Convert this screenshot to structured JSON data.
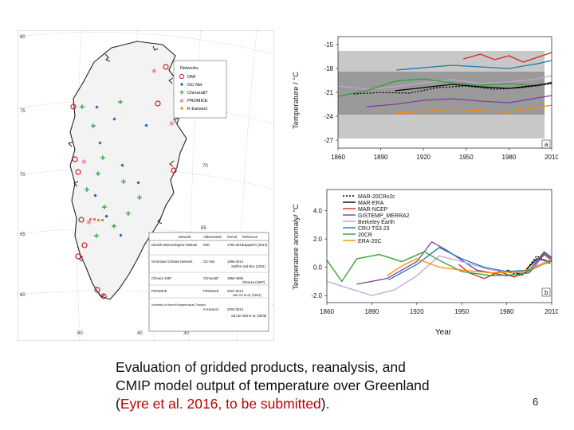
{
  "map": {
    "lat_labels": [
      "80",
      "75",
      "70",
      "65",
      "60"
    ],
    "lon_labels": [
      "60",
      "40",
      "30"
    ],
    "inner_lat_labels": [
      "70",
      "65"
    ],
    "legend": {
      "title": "Networks",
      "items": [
        {
          "label": "DMI",
          "color": "#d11b1b",
          "symbol": "circle"
        },
        {
          "label": "GC-Net",
          "color": "#1f5fbf",
          "symbol": "diamond"
        },
        {
          "label": "Chmura87",
          "color": "#2e9a3a",
          "symbol": "plus"
        },
        {
          "label": "PROMICE",
          "color": "#e089b5",
          "symbol": "star"
        },
        {
          "label": "K-transect",
          "color": "#f07f1f",
          "symbol": "square"
        }
      ]
    },
    "table": {
      "headers": [
        "Network",
        "Abbreviation",
        "Period",
        "Reference"
      ],
      "rows": [
        [
          "Danish Meteorological Institute",
          "DMI",
          "1784-2013",
          "Cappelen (2014)"
        ],
        [
          "Greenland Climate Network",
          "GC-Net",
          "1995-2013",
          "Steffen and Box (2001)"
        ],
        [
          "Chmura 1987",
          "Chmura87",
          "1950-1965",
          "Ohmura (1987)"
        ],
        [
          "PROMICE",
          "PROMICE",
          "2007-2013",
          "van As et al. (2011)"
        ],
        [
          "University of Utrecht Kangerlussuaq Transect",
          "K-transect",
          "2003-2013",
          "van de Wal et al. (2005)"
        ]
      ]
    }
  },
  "chart_a": {
    "ylabel": "Temperature / °C",
    "yticks": [
      "-15",
      "-18",
      "-21",
      "-24",
      "-27"
    ],
    "xticks": [
      "1860",
      "1890",
      "1920",
      "1950",
      "1980",
      "2010"
    ],
    "panel_label": "a"
  },
  "chart_b": {
    "ylabel": "Temperature anomaly/ °C",
    "yticks": [
      "4.0",
      "2.0",
      "0.0",
      "-2.0"
    ],
    "xticks": [
      "1860",
      "1890",
      "1920",
      "1950",
      "1980",
      "2010"
    ],
    "panel_label": "b",
    "xlabel": "Year"
  },
  "legend_b": [
    {
      "label": "MAR-20CRv2c",
      "color": "#000000",
      "dash": "2,2"
    },
    {
      "label": "MAR-ERA",
      "color": "#000000",
      "dash": ""
    },
    {
      "label": "MAR-NCEP",
      "color": "#d62728",
      "dash": ""
    },
    {
      "label": "GISTEMP_MERRA2",
      "color": "#7b3fa0",
      "dash": ""
    },
    {
      "label": "Berkeley Earth",
      "color": "#c3a3d6",
      "dash": ""
    },
    {
      "label": "CRU TS3.23",
      "color": "#1f77b4",
      "dash": ""
    },
    {
      "label": "20CR",
      "color": "#2ca02c",
      "dash": ""
    },
    {
      "label": "ERA-20C",
      "color": "#ff8c00",
      "dash": ""
    }
  ],
  "chart_data": [
    {
      "type": "line",
      "title": "a",
      "ylabel": "Temperature / °C",
      "xlabel": "",
      "xlim": [
        1860,
        2010
      ],
      "ylim": [
        -28,
        -14
      ],
      "series": [
        {
          "name": "MAR-NCEP",
          "color": "#d62728",
          "x": [
            1948,
            1960,
            1970,
            1980,
            1990,
            2000,
            2010
          ],
          "values": [
            -16.8,
            -16.2,
            -16.9,
            -16.4,
            -17.2,
            -16.6,
            -16.0
          ]
        },
        {
          "name": "CRU TS3.23",
          "color": "#1f77b4",
          "x": [
            1901,
            1920,
            1940,
            1960,
            1980,
            2000,
            2010
          ],
          "values": [
            -18.2,
            -17.9,
            -17.6,
            -17.8,
            -18.0,
            -17.4,
            -17.0
          ]
        },
        {
          "name": "Berkeley Earth",
          "color": "#c3a3d6",
          "x": [
            1860,
            1880,
            1900,
            1920,
            1940,
            1960,
            1980,
            2000,
            2010
          ],
          "values": [
            -20.2,
            -20.6,
            -20.3,
            -19.8,
            -19.4,
            -19.9,
            -19.7,
            -19.3,
            -18.9
          ]
        },
        {
          "name": "20CR",
          "color": "#2ca02c",
          "x": [
            1860,
            1880,
            1900,
            1920,
            1940,
            1960,
            1980,
            2000,
            2010
          ],
          "values": [
            -21.5,
            -20.8,
            -19.6,
            -19.3,
            -19.8,
            -20.1,
            -19.9,
            -20.2,
            -19.7
          ]
        },
        {
          "name": "MAR-20CRv2c",
          "color": "#000000",
          "x": [
            1871,
            1890,
            1910,
            1930,
            1950,
            1970,
            1990,
            2010
          ],
          "values": [
            -21.2,
            -21.0,
            -21.1,
            -20.4,
            -20.2,
            -20.6,
            -20.4,
            -19.9
          ]
        },
        {
          "name": "MAR-ERA",
          "color": "#000000",
          "x": [
            1900,
            1920,
            1940,
            1960,
            1980,
            2000,
            2010
          ],
          "values": [
            -20.8,
            -20.4,
            -20.0,
            -20.3,
            -20.5,
            -20.1,
            -19.8
          ]
        },
        {
          "name": "GISTEMP_MERRA2",
          "color": "#7b3fa0",
          "x": [
            1880,
            1900,
            1920,
            1940,
            1960,
            1980,
            2000,
            2010
          ],
          "values": [
            -22.8,
            -22.5,
            -22.0,
            -21.8,
            -22.1,
            -22.3,
            -21.7,
            -21.4
          ]
        },
        {
          "name": "ERA-20C",
          "color": "#ff8c00",
          "x": [
            1900,
            1920,
            1940,
            1960,
            1980,
            2000,
            2010
          ],
          "values": [
            -23.6,
            -23.4,
            -23.1,
            -23.3,
            -23.5,
            -22.9,
            -22.6
          ]
        }
      ]
    },
    {
      "type": "line",
      "title": "b",
      "xlabel": "Year",
      "ylabel": "Temperature anomaly/ °C",
      "xlim": [
        1860,
        2010
      ],
      "ylim": [
        -2.5,
        5.5
      ],
      "series": [
        {
          "name": "MAR-20CRv2c",
          "color": "#000000",
          "x": [
            1980,
            1990,
            2000,
            2010
          ],
          "values": [
            -0.3,
            -0.6,
            0.8,
            0.2
          ]
        },
        {
          "name": "MAR-ERA",
          "color": "#000000",
          "x": [
            1980,
            1990,
            2000,
            2010
          ],
          "values": [
            -0.2,
            -0.5,
            0.6,
            0.4
          ]
        },
        {
          "name": "MAR-NCEP",
          "color": "#d62728",
          "x": [
            1948,
            1955,
            1965,
            1975,
            1985,
            1995,
            2005,
            2010
          ],
          "values": [
            0.2,
            -0.4,
            -0.8,
            -0.3,
            -0.7,
            -0.2,
            1.0,
            0.6
          ]
        },
        {
          "name": "GISTEMP_MERRA2",
          "color": "#7b3fa0",
          "x": [
            1880,
            1900,
            1920,
            1930,
            1940,
            1960,
            1980,
            1995,
            2005,
            2010
          ],
          "values": [
            -1.2,
            -0.8,
            0.4,
            1.8,
            1.2,
            -0.2,
            -0.6,
            -0.4,
            0.9,
            0.5
          ]
        },
        {
          "name": "Berkeley Earth",
          "color": "#c3a3d6",
          "x": [
            1860,
            1875,
            1890,
            1905,
            1920,
            1935,
            1950,
            1970,
            1990,
            2010
          ],
          "values": [
            -1.0,
            -1.5,
            -2.0,
            -1.6,
            -0.6,
            0.8,
            0.4,
            -0.2,
            -0.4,
            0.6
          ]
        },
        {
          "name": "CRU TS3.23",
          "color": "#1f77b4",
          "x": [
            1901,
            1920,
            1935,
            1950,
            1965,
            1980,
            1995,
            2005,
            2010
          ],
          "values": [
            -0.9,
            0.2,
            1.4,
            0.6,
            0.0,
            -0.3,
            -0.2,
            1.1,
            0.7
          ]
        },
        {
          "name": "20CR",
          "color": "#2ca02c",
          "x": [
            1860,
            1870,
            1880,
            1895,
            1910,
            1925,
            1935,
            1950,
            1970,
            1990,
            2010
          ],
          "values": [
            0.5,
            -1.0,
            0.6,
            0.9,
            0.4,
            1.1,
            0.5,
            -0.3,
            -0.6,
            -0.5,
            0.5
          ]
        },
        {
          "name": "ERA-20C",
          "color": "#ff8c00",
          "x": [
            1900,
            1910,
            1920,
            1935,
            1950,
            1970,
            1990,
            2010
          ],
          "values": [
            -0.6,
            0.1,
            0.6,
            0.0,
            -0.2,
            -0.4,
            -0.3,
            0.4
          ]
        }
      ]
    }
  ],
  "caption": {
    "line1": "Evaluation of gridded products, reanalysis, and",
    "line2": "CMIP model output of temperature over Greenland",
    "line3_open": "(",
    "line3_ref": "Eyre et al. 2016, to be submitted",
    "line3_close": ")."
  },
  "page_number": "6"
}
